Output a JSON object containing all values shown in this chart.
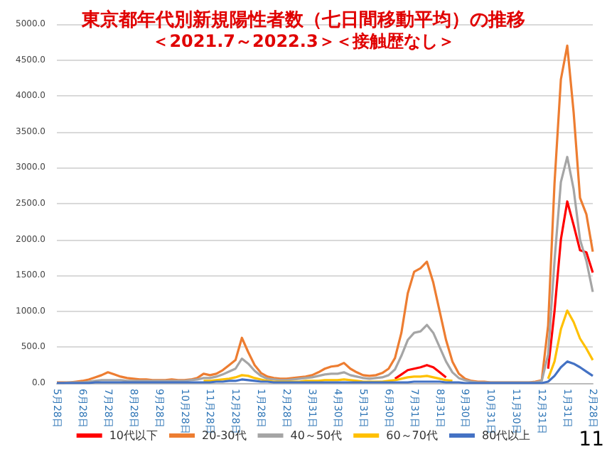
{
  "chart_data": {
    "type": "line",
    "title": "東京都年代別新規陽性者数（七日間移動平均）の推移",
    "subtitle": "＜2021.7～2022.3＞＜接触歴なし＞",
    "categories": [
      "5月28日",
      null,
      null,
      null,
      "6月28日",
      null,
      null,
      null,
      "7月28日",
      null,
      null,
      null,
      "8月28日",
      null,
      null,
      null,
      "9月28日",
      null,
      null,
      null,
      "10月28日",
      null,
      null,
      null,
      "11月28日",
      null,
      null,
      null,
      "12月28日",
      null,
      null,
      null,
      "1月28日",
      null,
      null,
      null,
      "2月28日",
      null,
      null,
      null,
      "3月31日",
      null,
      null,
      null,
      "4月30日",
      null,
      null,
      null,
      "5月31日",
      null,
      null,
      null,
      "6月30日",
      null,
      null,
      null,
      "7月31日",
      null,
      null,
      null,
      "8月31日",
      null,
      null,
      null,
      "9月30日",
      null,
      null,
      null,
      "10月31日",
      null,
      null,
      null,
      "11月30日",
      null,
      null,
      null,
      "12月31日",
      null,
      null,
      null,
      "1月31日",
      null,
      null,
      null,
      "2月28日"
    ],
    "series": [
      {
        "name": "10代以下",
        "color": "#ff0000",
        "values": [
          null,
          null,
          null,
          null,
          null,
          null,
          null,
          null,
          null,
          null,
          null,
          null,
          null,
          null,
          null,
          null,
          null,
          null,
          null,
          null,
          null,
          null,
          null,
          null,
          null,
          null,
          null,
          null,
          null,
          null,
          null,
          null,
          null,
          null,
          null,
          null,
          null,
          null,
          null,
          null,
          null,
          null,
          null,
          null,
          null,
          null,
          null,
          null,
          null,
          null,
          null,
          null,
          null,
          60,
          120,
          180,
          200,
          220,
          250,
          220,
          150,
          80,
          null,
          null,
          null,
          null,
          null,
          null,
          null,
          null,
          null,
          null,
          null,
          null,
          null,
          null,
          null,
          200,
          1000,
          2000,
          2530,
          2200,
          1850,
          1820,
          1540
        ]
      },
      {
        "name": "20-30代",
        "color": "#ed7d31",
        "values": [
          10,
          10,
          10,
          20,
          30,
          50,
          80,
          110,
          150,
          120,
          90,
          70,
          60,
          50,
          50,
          40,
          40,
          40,
          50,
          40,
          40,
          50,
          70,
          130,
          110,
          130,
          180,
          250,
          320,
          630,
          430,
          250,
          140,
          90,
          70,
          60,
          60,
          70,
          80,
          90,
          110,
          150,
          200,
          230,
          240,
          280,
          200,
          150,
          110,
          100,
          110,
          140,
          200,
          350,
          700,
          1250,
          1550,
          1600,
          1690,
          1400,
          1000,
          600,
          300,
          130,
          60,
          30,
          20,
          20,
          10,
          10,
          10,
          10,
          10,
          10,
          10,
          20,
          40,
          800,
          2780,
          4230,
          4700,
          3770,
          2580,
          2350,
          1830
        ]
      },
      {
        "name": "40～50代",
        "color": "#a5a5a5",
        "values": [
          0,
          0,
          10,
          10,
          10,
          20,
          30,
          40,
          40,
          40,
          40,
          30,
          30,
          30,
          30,
          30,
          30,
          30,
          30,
          30,
          30,
          40,
          50,
          70,
          70,
          90,
          120,
          160,
          200,
          340,
          270,
          170,
          100,
          60,
          50,
          40,
          40,
          50,
          60,
          70,
          80,
          100,
          120,
          130,
          130,
          150,
          110,
          90,
          70,
          60,
          70,
          80,
          110,
          190,
          380,
          600,
          700,
          720,
          810,
          700,
          500,
          300,
          150,
          70,
          40,
          20,
          10,
          10,
          10,
          10,
          10,
          10,
          10,
          10,
          10,
          10,
          30,
          400,
          1700,
          2800,
          3150,
          2700,
          2000,
          1700,
          1270
        ]
      },
      {
        "name": "60～70代",
        "color": "#ffc000",
        "values": [
          null,
          null,
          null,
          null,
          null,
          null,
          null,
          null,
          null,
          null,
          null,
          null,
          null,
          null,
          null,
          null,
          null,
          null,
          null,
          null,
          null,
          null,
          null,
          30,
          30,
          40,
          50,
          60,
          80,
          110,
          100,
          70,
          50,
          30,
          20,
          20,
          20,
          20,
          20,
          30,
          30,
          30,
          40,
          40,
          40,
          50,
          40,
          30,
          20,
          20,
          20,
          20,
          30,
          40,
          60,
          80,
          90,
          90,
          100,
          80,
          60,
          40,
          30,
          null,
          null,
          null,
          null,
          null,
          null,
          null,
          null,
          null,
          null,
          null,
          null,
          null,
          null,
          60,
          300,
          750,
          1010,
          850,
          620,
          480,
          320
        ]
      },
      {
        "name": "80代以上",
        "color": "#4472c4",
        "values": [
          0,
          0,
          0,
          0,
          0,
          0,
          10,
          10,
          10,
          10,
          10,
          10,
          10,
          10,
          10,
          10,
          10,
          10,
          10,
          10,
          10,
          10,
          10,
          10,
          10,
          20,
          20,
          30,
          30,
          50,
          40,
          30,
          20,
          20,
          10,
          10,
          10,
          10,
          10,
          10,
          10,
          10,
          10,
          10,
          10,
          10,
          10,
          10,
          10,
          10,
          10,
          10,
          10,
          10,
          10,
          10,
          20,
          20,
          20,
          20,
          20,
          10,
          10,
          10,
          0,
          0,
          0,
          0,
          0,
          0,
          0,
          0,
          0,
          0,
          0,
          0,
          0,
          20,
          100,
          220,
          300,
          270,
          220,
          160,
          100
        ]
      }
    ],
    "ylim": [
      0,
      5000
    ],
    "yticks": [
      {
        "value": 0,
        "label": "0.0"
      },
      {
        "value": 500,
        "label": "500.0"
      },
      {
        "value": 1000,
        "label": "1000.0"
      },
      {
        "value": 1500,
        "label": "1500.0"
      },
      {
        "value": 2000,
        "label": "2000.0"
      },
      {
        "value": 2500,
        "label": "2500.0"
      },
      {
        "value": 3000,
        "label": "3000.0"
      },
      {
        "value": 3500,
        "label": "3500.0"
      },
      {
        "value": 4000,
        "label": "4000.0"
      },
      {
        "value": 4500,
        "label": "4500.0"
      },
      {
        "value": 5000,
        "label": "5000.0"
      }
    ],
    "grid": "y",
    "legend": "bottom",
    "marker": "none",
    "line_style": "solid",
    "annotations": [
      "11"
    ]
  }
}
